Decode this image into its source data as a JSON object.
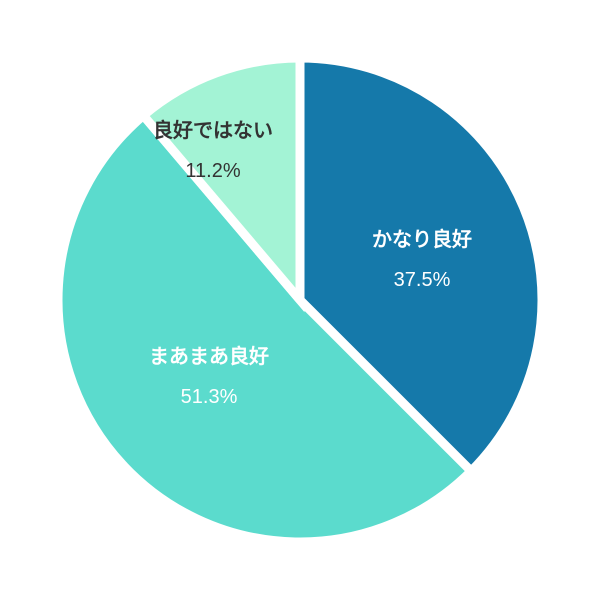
{
  "chart_data": {
    "type": "pie",
    "title": "",
    "start_angle_deg": 0,
    "direction": "clockwise",
    "slices": [
      {
        "label": "かなり良好",
        "value": 37.5,
        "value_label": "37.5%",
        "color": "#1579aa",
        "text_color": "#ffffff"
      },
      {
        "label": "まあまあ良好",
        "value": 51.3,
        "value_label": "51.3%",
        "color": "#5bdbcd",
        "text_color": "#ffffff"
      },
      {
        "label": "良好ではない",
        "value": 11.2,
        "value_label": "11.2%",
        "color": "#a3f3d5",
        "text_color": "#333333"
      }
    ],
    "separator_color": "#ffffff"
  }
}
